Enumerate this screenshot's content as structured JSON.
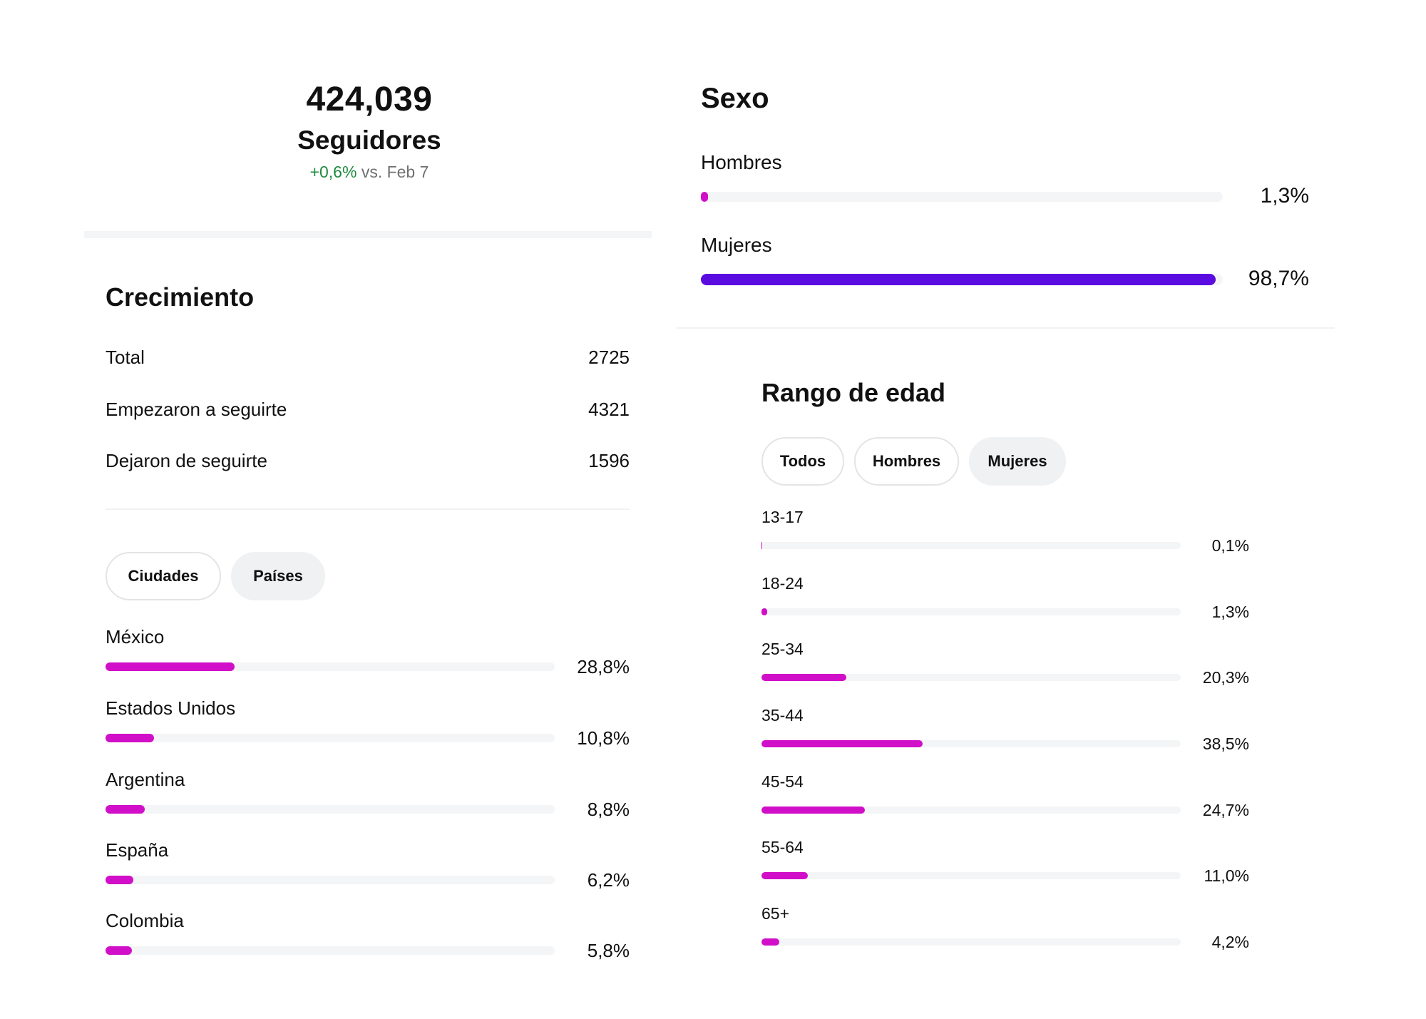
{
  "followers": {
    "count": "424,039",
    "label": "Seguidores",
    "change": "+0,6%",
    "change_suffix": "vs. Feb 7"
  },
  "growth": {
    "title": "Crecimiento",
    "rows": [
      {
        "label": "Total",
        "value": "2725"
      },
      {
        "label": "Empezaron a seguirte",
        "value": "4321"
      },
      {
        "label": "Dejaron de seguirte",
        "value": "1596"
      }
    ]
  },
  "location": {
    "tabs": [
      "Ciudades",
      "Países"
    ],
    "items": [
      {
        "label": "México",
        "percent": 28.8,
        "display": "28,8%"
      },
      {
        "label": "Estados Unidos",
        "percent": 10.8,
        "display": "10,8%"
      },
      {
        "label": "Argentina",
        "percent": 8.8,
        "display": "8,8%"
      },
      {
        "label": "España",
        "percent": 6.2,
        "display": "6,2%"
      },
      {
        "label": "Colombia",
        "percent": 5.8,
        "display": "5,8%"
      }
    ]
  },
  "gender": {
    "title": "Sexo",
    "items": [
      {
        "label": "Hombres",
        "percent": 1.3,
        "display": "1,3%",
        "color": "#d10fc8"
      },
      {
        "label": "Mujeres",
        "percent": 98.7,
        "display": "98,7%",
        "color": "#5a0be0"
      }
    ]
  },
  "age": {
    "title": "Rango de edad",
    "tabs": [
      "Todos",
      "Hombres",
      "Mujeres"
    ],
    "items": [
      {
        "label": "13-17",
        "percent": 0.1,
        "display": "0,1%"
      },
      {
        "label": "18-24",
        "percent": 1.3,
        "display": "1,3%"
      },
      {
        "label": "25-34",
        "percent": 20.3,
        "display": "20,3%"
      },
      {
        "label": "35-44",
        "percent": 38.5,
        "display": "38,5%"
      },
      {
        "label": "45-54",
        "percent": 24.7,
        "display": "24,7%"
      },
      {
        "label": "55-64",
        "percent": 11.0,
        "display": "11,0%"
      },
      {
        "label": "65+",
        "percent": 4.2,
        "display": "4,2%"
      }
    ]
  },
  "colors": {
    "accent_pink": "#d10fc8",
    "accent_purple": "#5a0be0",
    "positive": "#1e8a3e"
  }
}
